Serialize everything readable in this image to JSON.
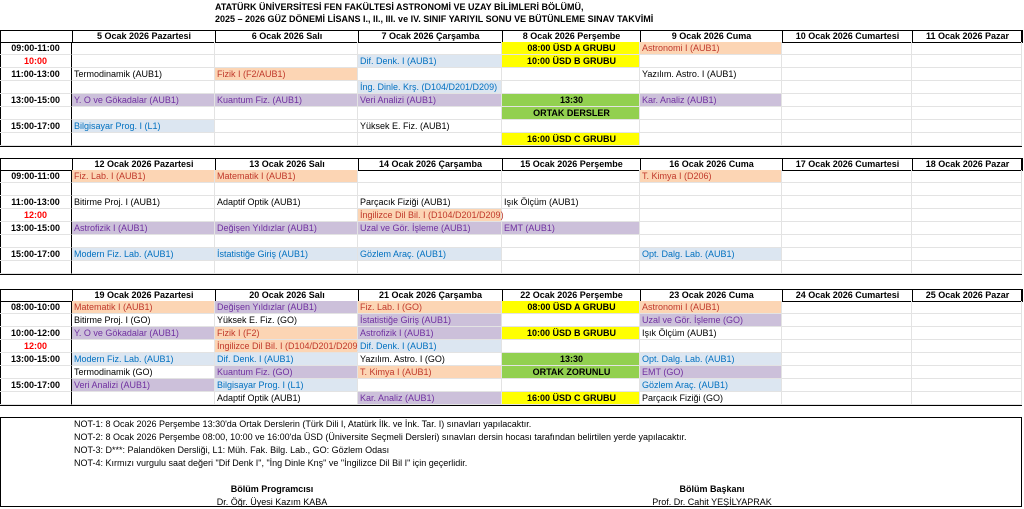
{
  "header": {
    "title_lines": [
      "ATATÜRK ÜNİVERSİTESİ FEN FAKÜLTESİ ASTRONOMİ VE UZAY BİLİMLERİ BÖLÜMÜ,",
      "2025 – 2026 GÜZ DÖNEMİ LİSANS I., II., III. ve IV. SINIF  YARIYIL SONU VE BÜTÜNLEME SINAV TAKVİMİ"
    ]
  },
  "weeks": [
    {
      "days": [
        "5 Ocak 2026 Pazartesi",
        "6 Ocak 2026 Salı",
        "7 Ocak 2026 Çarşamba",
        "8 Ocak 2026 Perşembe",
        "9 Ocak 2026 Cuma",
        "10 Ocak 2026 Cumartesi",
        "11 Ocak 2026 Pazar"
      ],
      "rows": [
        {
          "time": "09:00-11:00",
          "cells": [
            null,
            null,
            null,
            {
              "text": "08:00 ÜSD A GRUBU",
              "fill": "#ffff00"
            },
            {
              "text": "Astronomi I (AUB1)",
              "fill": "#fcd5b4"
            },
            null,
            null
          ]
        },
        {
          "time": "10:00",
          "time_color": "#ff0000",
          "cells": [
            null,
            null,
            {
              "text": "Dif. Denk. I (AUB1)",
              "fill": "#dce6f1"
            },
            {
              "text": "10:00 ÜSD B GRUBU",
              "fill": "#ffff00"
            },
            null,
            null,
            null
          ]
        },
        {
          "time": "11:00-13:00",
          "cells": [
            {
              "text": "Termodinamik (AUB1)"
            },
            {
              "text": "Fizik I (F2/AUB1)",
              "fill": "#fcd5b4"
            },
            null,
            null,
            {
              "text": "Yazılım. Astro. I (AUB1)"
            },
            null,
            null
          ]
        },
        {
          "time": null,
          "cells": [
            null,
            null,
            {
              "text": "İng. Dinle. Krş. (D104/D201/D209)",
              "fill": "#dce6f1"
            },
            null,
            null,
            null,
            null
          ]
        },
        {
          "time": "13:00-15:00",
          "cells": [
            {
              "text": "Y. O ve Gökadalar (AUB1)",
              "fill": "#ccc0da"
            },
            {
              "text": "Kuantum Fiz. (AUB1)",
              "fill": "#ccc0da"
            },
            {
              "text": "Veri Analizi (AUB1)",
              "fill": "#ccc0da"
            },
            {
              "text": "13:30",
              "fill": "#92d050"
            },
            {
              "text": "Kar. Analiz (AUB1)",
              "fill": "#ccc0da"
            },
            null,
            null
          ]
        },
        {
          "time": null,
          "cells": [
            null,
            null,
            null,
            {
              "text": "ORTAK  DERSLER",
              "fill": "#92d050"
            },
            null,
            null,
            null
          ]
        },
        {
          "time": "15:00-17:00",
          "cells": [
            {
              "text": "Bilgisayar Prog. I (L1)",
              "fill": "#dce6f1"
            },
            null,
            {
              "text": "Yüksek E. Fiz. (AUB1)"
            },
            null,
            null,
            null,
            null
          ]
        },
        {
          "time": null,
          "cells": [
            null,
            null,
            null,
            {
              "text": "16:00 ÜSD C GRUBU",
              "fill": "#ffff00"
            },
            null,
            null,
            null
          ]
        }
      ]
    },
    {
      "days": [
        "12 Ocak 2026 Pazartesi",
        "13 Ocak 2026 Salı",
        "14 Ocak 2026 Çarşamba",
        "15 Ocak 2026 Perşembe",
        "16 Ocak 2026 Cuma",
        "17 Ocak 2026 Cumartesi",
        "18 Ocak 2026 Pazar"
      ],
      "rows": [
        {
          "time": "09:00-11:00",
          "cells": [
            {
              "text": "Fiz. Lab. I (AUB1)",
              "fill": "#fcd5b4"
            },
            {
              "text": "Matematik I (AUB1)",
              "fill": "#fcd5b4"
            },
            null,
            null,
            {
              "text": "T. Kimya I (D206)",
              "fill": "#fcd5b4"
            },
            null,
            null
          ]
        },
        {
          "time": null,
          "cells": [
            null,
            null,
            null,
            null,
            null,
            null,
            null
          ]
        },
        {
          "time": "11:00-13:00",
          "cells": [
            {
              "text": "Bitirme Proj. I (AUB1)"
            },
            {
              "text": "Adaptif Optik (AUB1)"
            },
            {
              "text": "Parçacık Fiziği (AUB1)"
            },
            {
              "text": "Işık Ölçüm (AUB1)"
            },
            null,
            null,
            null
          ]
        },
        {
          "time": "12:00",
          "time_color": "#ff0000",
          "cells": [
            null,
            null,
            {
              "text": "İngilizce Dil Bil. I (D104/D201/D209)",
              "fill": "#fcd5b4"
            },
            null,
            null,
            null,
            null
          ]
        },
        {
          "time": "13:00-15:00",
          "cells": [
            {
              "text": "Astrofizik I (AUB1)",
              "fill": "#ccc0da"
            },
            {
              "text": "Değişen Yıldızlar (AUB1)",
              "fill": "#ccc0da"
            },
            {
              "text": "Uzal ve Gör. İşleme (AUB1)",
              "fill": "#ccc0da"
            },
            {
              "text": "EMT (AUB1)",
              "fill": "#ccc0da"
            },
            null,
            null,
            null
          ]
        },
        {
          "time": null,
          "cells": [
            null,
            null,
            null,
            null,
            null,
            null,
            null
          ]
        },
        {
          "time": "15:00-17:00",
          "cells": [
            {
              "text": "Modern Fiz. Lab. (AUB1)",
              "fill": "#dce6f1"
            },
            {
              "text": "İstatistiğe Giriş (AUB1)",
              "fill": "#dce6f1"
            },
            {
              "text": "Gözlem Araç. (AUB1)",
              "fill": "#dce6f1"
            },
            null,
            {
              "text": "Opt. Dalg. Lab. (AUB1)",
              "fill": "#dce6f1"
            },
            null,
            null
          ]
        },
        {
          "time": null,
          "cells": [
            null,
            null,
            null,
            null,
            null,
            null,
            null
          ]
        }
      ]
    },
    {
      "days": [
        "19 Ocak 2026 Pazartesi",
        "20 Ocak 2026 Salı",
        "21 Ocak 2026 Çarşamba",
        "22 Ocak 2026 Perşembe",
        "23 Ocak 2026 Cuma",
        "24 Ocak 2026 Cumartesi",
        "25 Ocak 2026 Pazar"
      ],
      "rows": [
        {
          "time": "08:00-10:00",
          "cells": [
            {
              "text": "Matematik I (AUB1)",
              "fill": "#fcd5b4"
            },
            {
              "text": "Değişen Yıldızlar (AUB1)",
              "fill": "#ccc0da"
            },
            {
              "text": "Fiz. Lab. I (GO)",
              "fill": "#fcd5b4"
            },
            {
              "text": "08:00 ÜSD A GRUBU",
              "fill": "#ffff00"
            },
            {
              "text": "Astronomi I (AUB1)",
              "fill": "#fcd5b4"
            },
            null,
            null
          ]
        },
        {
          "time": null,
          "cells": [
            {
              "text": "Bitirme Proj. I (GO)"
            },
            {
              "text": "Yüksek E. Fiz. (GO)"
            },
            {
              "text": "İstatistiğe Giriş (AUB1)",
              "fill": "#ccc0da"
            },
            null,
            {
              "text": "Uzal ve Gör. İşleme (GO)",
              "fill": "#ccc0da"
            },
            null,
            null
          ]
        },
        {
          "time": "10:00-12:00",
          "cells": [
            {
              "text": "Y. O ve Gökadalar (AUB1)",
              "fill": "#ccc0da"
            },
            {
              "text": "Fizik I (F2)",
              "fill": "#fcd5b4"
            },
            {
              "text": "Astrofizik I (AUB1)",
              "fill": "#ccc0da"
            },
            {
              "text": "10:00 ÜSD B GRUBU",
              "fill": "#ffff00"
            },
            {
              "text": "Işık Ölçüm (AUB1)"
            },
            null,
            null
          ]
        },
        {
          "time": "12:00",
          "time_color": "#ff0000",
          "cells": [
            null,
            {
              "text": "İngilizce Dil Bil. I (D104/D201/D209)",
              "fill": "#fcd5b4"
            },
            {
              "text": "Dif. Denk. I (AUB1)",
              "fill": "#dce6f1"
            },
            null,
            null,
            null,
            null
          ]
        },
        {
          "time": "13:00-15:00",
          "cells": [
            {
              "text": "Modern Fiz. Lab. (AUB1)",
              "fill": "#dce6f1"
            },
            {
              "text": "Dif. Denk. I (AUB1)",
              "fill": "#dce6f1"
            },
            {
              "text": "Yazılım. Astro. I (GO)"
            },
            {
              "text": "13:30",
              "fill": "#92d050"
            },
            {
              "text": "Opt. Dalg. Lab. (AUB1)",
              "fill": "#dce6f1"
            },
            null,
            null
          ]
        },
        {
          "time": null,
          "cells": [
            {
              "text": "Termodinamik (GO)"
            },
            {
              "text": "Kuantum Fiz. (GO)",
              "fill": "#ccc0da"
            },
            {
              "text": "T. Kimya I (AUB1)",
              "fill": "#fcd5b4"
            },
            {
              "text": "ORTAK  ZORUNLU",
              "fill": "#92d050"
            },
            {
              "text": "EMT (GO)",
              "fill": "#ccc0da"
            },
            null,
            null
          ]
        },
        {
          "time": "15:00-17:00",
          "cells": [
            {
              "text": "Veri Analizi (AUB1)",
              "fill": "#ccc0da"
            },
            {
              "text": "Bilgisayar Prog. I (L1)",
              "fill": "#dce6f1"
            },
            null,
            null,
            {
              "text": "Gözlem Araç.  (AUB1)",
              "fill": "#dce6f1"
            },
            null,
            null
          ]
        },
        {
          "time": null,
          "cells": [
            null,
            {
              "text": "Adaptif Optik (AUB1)"
            },
            {
              "text": "Kar. Analiz (AUB1)",
              "fill": "#ccc0da"
            },
            {
              "text": "16:00 ÜSD C GRUBU",
              "fill": "#ffff00"
            },
            {
              "text": "Parçacık Fiziği (GO)"
            },
            null,
            null
          ]
        }
      ]
    }
  ],
  "notes": [
    "NOT-1: 8 Ocak 2026 Perşembe 13:30'da Ortak Derslerin (Türk Dili I, Atatürk İlk. ve İnk. Tar. I) sınavları yapılacaktır.",
    "NOT-2: 8 Ocak 2026 Perşembe 08:00, 10:00 ve 16:00'da ÜSD (Üniversite Seçmeli Dersleri) sınavları dersin hocası tarafından belirtilen yerde yapılacaktır.",
    "NOT-3: D***: Palandöken Dersliği, L1: Müh. Fak. Bilg. Lab., GO: Gözlem Odası",
    "NOT-4: Kırmızı vurgulu saat değeri \"Dif Denk I\", \"İng Dinle Knş\" ve \"İngilizce Dil Bil I\" için geçerlidir."
  ],
  "signatures": [
    {
      "role": "Bölüm Programcısı",
      "name": "Dr. Öğr. Üyesi Kazım KABA"
    },
    {
      "role": "Bölüm Başkanı",
      "name": "Prof. Dr. Cahit YEŞİLYAPRAK"
    }
  ]
}
